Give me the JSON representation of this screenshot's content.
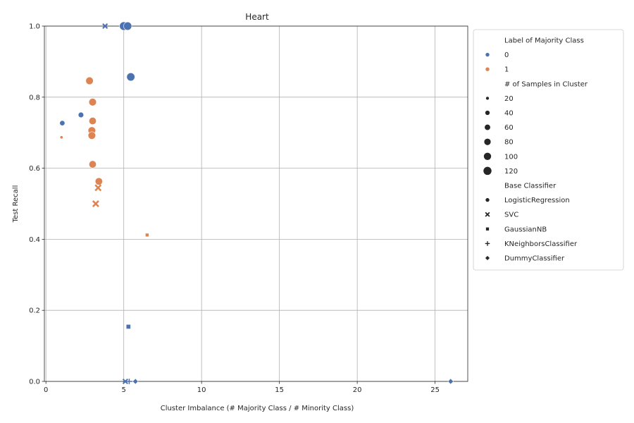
{
  "chart_data": {
    "type": "scatter",
    "title": "Heart",
    "xlabel": "Cluster Imbalance (# Majority Class / # Minority Class)",
    "ylabel": "Test Recall",
    "xlim": [
      -0.1,
      27.1
    ],
    "ylim": [
      0.0,
      1.0
    ],
    "xticks": [
      0,
      5,
      10,
      15,
      20,
      25
    ],
    "yticks": [
      0.0,
      0.2,
      0.4,
      0.6,
      0.8,
      1.0
    ],
    "grid": true,
    "legend_position": "outside-right",
    "colors": {
      "0": "#4c72b0",
      "1": "#dd8452"
    },
    "legend": {
      "hue_title": "Label of Majority Class",
      "hue_entries": [
        "0",
        "1"
      ],
      "size_title": "# of Samples in Cluster",
      "size_entries": [
        20,
        40,
        60,
        80,
        100,
        120
      ],
      "style_title": "Base Classifier",
      "style_entries": [
        "LogisticRegression",
        "SVC",
        "GaussianNB",
        "KNeighborsClassifier",
        "DummyClassifier"
      ]
    },
    "style_markers": {
      "LogisticRegression": "circle",
      "SVC": "x",
      "GaussianNB": "square",
      "KNeighborsClassifier": "plus",
      "DummyClassifier": "diamond"
    },
    "points": [
      {
        "x": 1.0,
        "y": 0.687,
        "label": 1,
        "samples": 15,
        "clf": "LogisticRegression"
      },
      {
        "x": 1.05,
        "y": 0.727,
        "label": 0,
        "samples": 45,
        "clf": "LogisticRegression"
      },
      {
        "x": 2.25,
        "y": 0.75,
        "label": 0,
        "samples": 50,
        "clf": "LogisticRegression"
      },
      {
        "x": 2.8,
        "y": 0.846,
        "label": 1,
        "samples": 95,
        "clf": "LogisticRegression"
      },
      {
        "x": 3.0,
        "y": 0.786,
        "label": 1,
        "samples": 95,
        "clf": "LogisticRegression"
      },
      {
        "x": 3.0,
        "y": 0.733,
        "label": 1,
        "samples": 90,
        "clf": "LogisticRegression"
      },
      {
        "x": 2.95,
        "y": 0.706,
        "label": 1,
        "samples": 95,
        "clf": "LogisticRegression"
      },
      {
        "x": 2.95,
        "y": 0.692,
        "label": 1,
        "samples": 95,
        "clf": "LogisticRegression"
      },
      {
        "x": 3.0,
        "y": 0.611,
        "label": 1,
        "samples": 90,
        "clf": "LogisticRegression"
      },
      {
        "x": 3.4,
        "y": 0.563,
        "label": 1,
        "samples": 90,
        "clf": "LogisticRegression"
      },
      {
        "x": 3.35,
        "y": 0.545,
        "label": 1,
        "samples": 60,
        "clf": "SVC"
      },
      {
        "x": 3.2,
        "y": 0.5,
        "label": 1,
        "samples": 60,
        "clf": "SVC"
      },
      {
        "x": 6.5,
        "y": 0.412,
        "label": 1,
        "samples": 30,
        "clf": "GaussianNB"
      },
      {
        "x": 5.0,
        "y": 1.0,
        "label": 0,
        "samples": 120,
        "clf": "LogisticRegression"
      },
      {
        "x": 5.25,
        "y": 1.0,
        "label": 0,
        "samples": 110,
        "clf": "LogisticRegression"
      },
      {
        "x": 3.8,
        "y": 1.0,
        "label": 0,
        "samples": 40,
        "clf": "SVC"
      },
      {
        "x": 5.45,
        "y": 0.857,
        "label": 0,
        "samples": 110,
        "clf": "LogisticRegression"
      },
      {
        "x": 5.3,
        "y": 0.154,
        "label": 0,
        "samples": 50,
        "clf": "GaussianNB"
      },
      {
        "x": 5.1,
        "y": 0.0,
        "label": 0,
        "samples": 40,
        "clf": "SVC"
      },
      {
        "x": 5.35,
        "y": 0.0,
        "label": 0,
        "samples": 40,
        "clf": "KNeighborsClassifier"
      },
      {
        "x": 5.75,
        "y": 0.0,
        "label": 0,
        "samples": 40,
        "clf": "DummyClassifier"
      },
      {
        "x": 26.0,
        "y": 0.0,
        "label": 0,
        "samples": 40,
        "clf": "DummyClassifier"
      }
    ]
  }
}
